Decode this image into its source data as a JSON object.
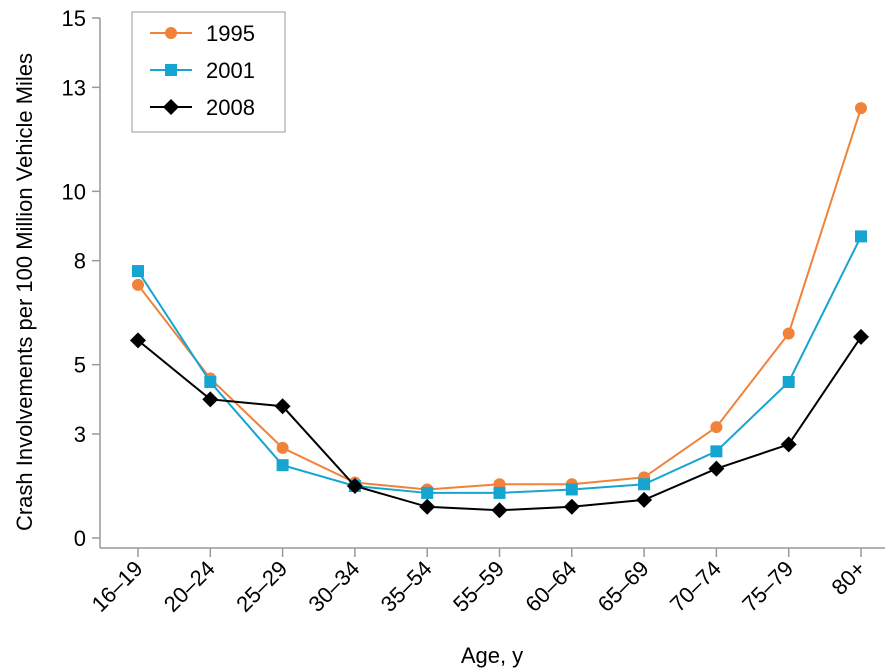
{
  "chart_data": {
    "type": "line",
    "title": "",
    "xlabel": "Age, y",
    "ylabel": "Crash Involvements per 100 Million Vehicle Miles",
    "categories": [
      "16–19",
      "20–24",
      "25–29",
      "30–34",
      "35–54",
      "55–59",
      "60–64",
      "65–69",
      "70–74",
      "75–79",
      "80+"
    ],
    "yticks": [
      0,
      3,
      5,
      8,
      10,
      13,
      15
    ],
    "ytick_labels": [
      "0",
      "3",
      "5",
      "8",
      "10",
      "13",
      "15"
    ],
    "ylim": [
      0,
      15
    ],
    "grid": false,
    "legend_position": "top-left",
    "series": [
      {
        "name": "1995",
        "marker": "circle",
        "color": "#F0823A",
        "values": [
          7.3,
          4.6,
          2.6,
          1.6,
          1.4,
          1.55,
          1.55,
          1.75,
          3.2,
          5.9,
          12.4
        ]
      },
      {
        "name": "2001",
        "marker": "square",
        "color": "#16A5D0",
        "values": [
          7.7,
          4.5,
          2.1,
          1.5,
          1.3,
          1.3,
          1.4,
          1.55,
          2.5,
          4.5,
          8.7
        ]
      },
      {
        "name": "2008",
        "marker": "diamond",
        "color": "#000000",
        "values": [
          5.7,
          4.0,
          3.8,
          1.5,
          0.9,
          0.8,
          0.9,
          1.1,
          2.0,
          2.7,
          5.8
        ]
      }
    ]
  }
}
